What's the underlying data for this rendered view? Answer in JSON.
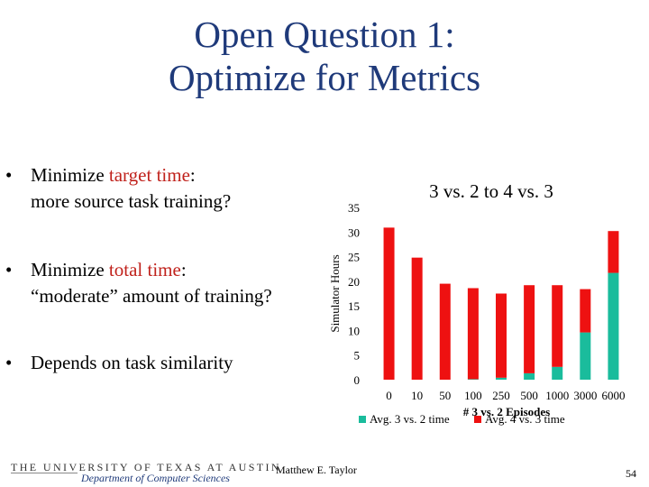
{
  "slide": {
    "title_line1": "Open Question 1:",
    "title_line2": "Optimize for Metrics",
    "bullets": [
      {
        "pre": "Minimize ",
        "highlight": "target time",
        "post": ":",
        "line2": "more source task training?"
      },
      {
        "pre": "Minimize ",
        "highlight": "total time",
        "post": ":",
        "line2": "“moderate” amount of training?"
      },
      {
        "pre": "",
        "highlight": "",
        "post": "Depends on task similarity",
        "line2": ""
      }
    ],
    "bullet_char": "•",
    "colors": {
      "title": "#1f3a7a",
      "highlight": "#c0221c"
    }
  },
  "footer": {
    "university": "THE UNIVERSITY OF TEXAS AT AUSTIN",
    "department": "Department of Computer Sciences",
    "presenter": "Matthew E. Taylor",
    "page": "54"
  },
  "chart_data": {
    "type": "bar",
    "stacked": true,
    "title": "3 vs. 2 to 4 vs. 3",
    "xlabel": "# 3 vs. 2 Episodes",
    "ylabel": "Simulator Hours",
    "categories": [
      "0",
      "10",
      "50",
      "100",
      "250",
      "500",
      "1000",
      "3000",
      "6000"
    ],
    "ylim": [
      0,
      35
    ],
    "yticks": [
      0,
      5,
      10,
      15,
      20,
      25,
      30,
      35
    ],
    "grid": false,
    "legend_position": "bottom",
    "series": [
      {
        "name": "Avg. 3 vs. 2 time",
        "color": "#1abc9c",
        "values": [
          0,
          0,
          0,
          0.1,
          0.4,
          1.3,
          2.6,
          9.6,
          21.7
        ]
      },
      {
        "name": "Avg. 4 vs. 3 time",
        "color": "#ee1111",
        "values": [
          30.9,
          24.8,
          19.5,
          18.5,
          17.1,
          17.9,
          16.6,
          8.8,
          8.5
        ]
      }
    ]
  }
}
